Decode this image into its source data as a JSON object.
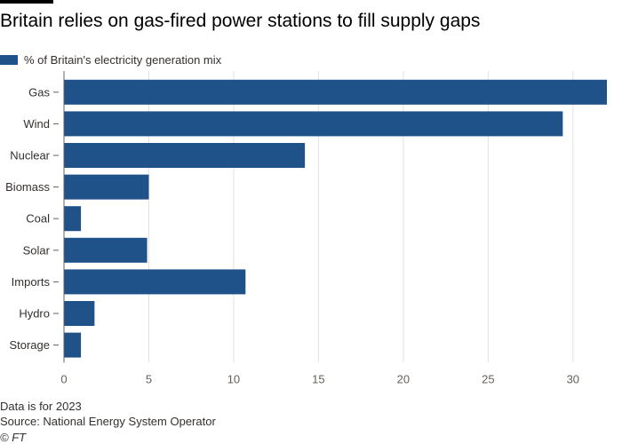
{
  "chart_data": {
    "type": "bar",
    "orientation": "horizontal",
    "title": "Britain relies on gas-fired power stations to fill supply gaps",
    "categories": [
      "Gas",
      "Wind",
      "Nuclear",
      "Biomass",
      "Coal",
      "Solar",
      "Imports",
      "Hydro",
      "Storage"
    ],
    "series": [
      {
        "name": "% of Britain's electricity generation mix",
        "values": [
          32.0,
          29.4,
          14.2,
          5.0,
          1.0,
          4.9,
          10.7,
          1.8,
          1.0
        ]
      }
    ],
    "xlim": [
      0,
      32
    ],
    "xticks": [
      0,
      5,
      10,
      15,
      20,
      25,
      30
    ],
    "grid": true,
    "legend_position": "top-left",
    "bar_color": "#1f5289",
    "notes": [
      "Data is for 2023",
      "Source: National Energy System Operator",
      "© FT"
    ]
  },
  "colors": {
    "bar": "#1f5289",
    "grid": "#e6e0d9",
    "axis": "#66605c"
  }
}
